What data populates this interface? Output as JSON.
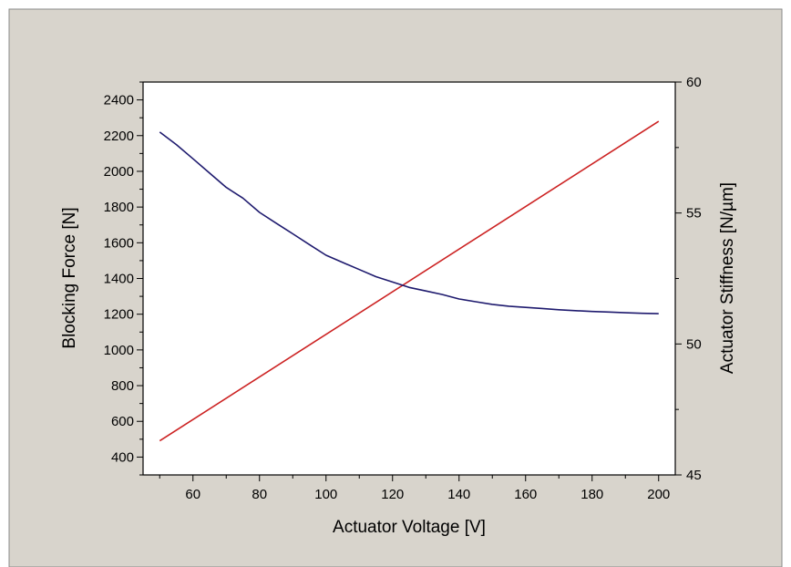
{
  "chart_data": {
    "type": "line",
    "xlabel": "Actuator Voltage [V]",
    "ylabel_left": "Blocking Force [N]",
    "ylabel_right": "Actuator Stiffness [N/µm]",
    "xlim": [
      45,
      205
    ],
    "ylim_left": [
      300,
      2500
    ],
    "ylim_right": [
      45,
      60
    ],
    "x_ticks": [
      60,
      80,
      100,
      120,
      140,
      160,
      180,
      200
    ],
    "y_left_ticks": [
      400,
      600,
      800,
      1000,
      1200,
      1400,
      1600,
      1800,
      2000,
      2200,
      2400
    ],
    "y_right_ticks": [
      45,
      50,
      55,
      60
    ],
    "grid": false,
    "colors": {
      "background": "#d8d4cc",
      "plot_area": "#ffffff",
      "series_stiffness": "#cc2222",
      "series_force": "#1e1a6e"
    },
    "series": [
      {
        "axis": "right",
        "color": "#cc2222",
        "x": [
          50,
          200
        ],
        "y": [
          46.3,
          58.5
        ]
      },
      {
        "axis": "left",
        "color": "#1e1a6e",
        "x": [
          50,
          55,
          60,
          65,
          70,
          75,
          80,
          85,
          90,
          95,
          100,
          105,
          110,
          115,
          120,
          125,
          130,
          135,
          140,
          145,
          150,
          155,
          160,
          165,
          170,
          175,
          180,
          185,
          190,
          195,
          200
        ],
        "y": [
          2220,
          2150,
          2070,
          1990,
          1910,
          1850,
          1770,
          1710,
          1650,
          1590,
          1530,
          1490,
          1450,
          1410,
          1380,
          1350,
          1330,
          1310,
          1285,
          1270,
          1255,
          1245,
          1238,
          1232,
          1225,
          1220,
          1215,
          1212,
          1208,
          1205,
          1203
        ]
      }
    ]
  }
}
